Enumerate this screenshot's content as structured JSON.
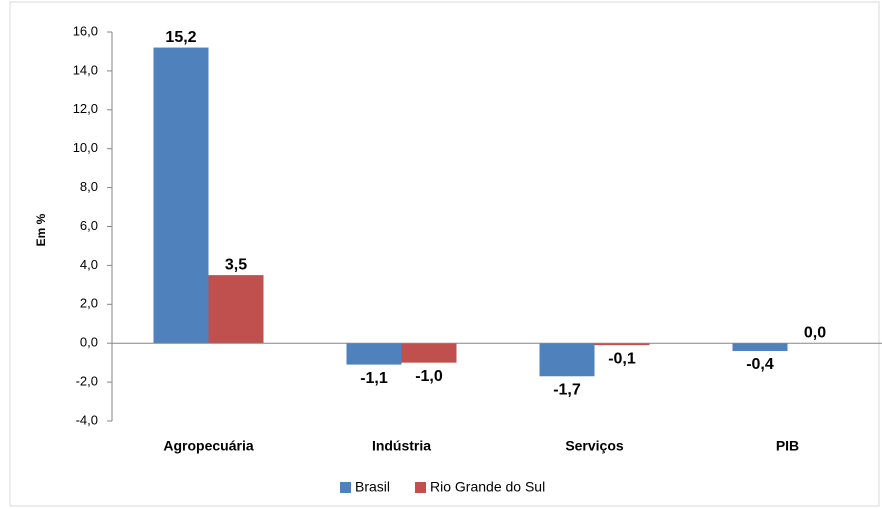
{
  "chart_data": {
    "type": "bar",
    "y_axis_label": "Em %",
    "categories": [
      "Agropecuária",
      "Indústria",
      "Serviços",
      "PIB"
    ],
    "series": [
      {
        "name": "Brasil",
        "color": "#4f81bd",
        "values": [
          15.2,
          -1.1,
          -1.7,
          -0.4
        ],
        "value_labels": [
          "15,2",
          "-1,1",
          "-1,7",
          "-0,4"
        ]
      },
      {
        "name": "Rio Grande do Sul",
        "color": "#c0504d",
        "values": [
          3.5,
          -1.0,
          -0.1,
          0.0
        ],
        "value_labels": [
          "3,5",
          "-1,0",
          "-0,1",
          "0,0"
        ]
      }
    ],
    "ylim": [
      -4,
      16
    ],
    "yticks": [
      {
        "value": -4,
        "label": "-4,0"
      },
      {
        "value": -2,
        "label": "-2,0"
      },
      {
        "value": 0,
        "label": "0,0"
      },
      {
        "value": 2,
        "label": "2,0"
      },
      {
        "value": 4,
        "label": "4,0"
      },
      {
        "value": 6,
        "label": "6,0"
      },
      {
        "value": 8,
        "label": "8,0"
      },
      {
        "value": 10,
        "label": "10,0"
      },
      {
        "value": 12,
        "label": "12,0"
      },
      {
        "value": 14,
        "label": "14,0"
      },
      {
        "value": 16,
        "label": "16,0"
      }
    ],
    "legend": "bottom"
  }
}
